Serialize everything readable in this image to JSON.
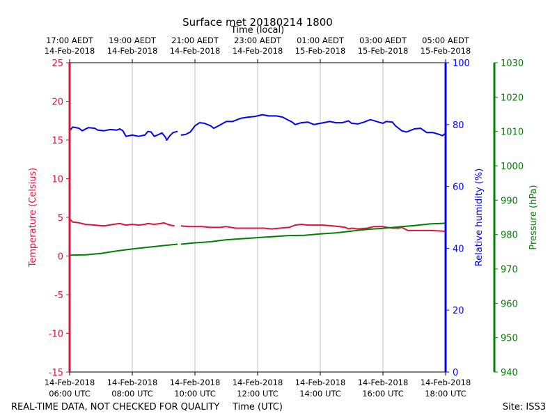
{
  "chart_data": {
    "type": "line",
    "title": "Surface met 20180214 1800",
    "top_axis_label": "Time (local)",
    "xlabel": "Time (UTC)",
    "x_unit": "UTC hour on 14-Feb-2018",
    "xlim": [
      6,
      18
    ],
    "top_ticks": [
      {
        "line1": "17:00 AEDT",
        "line2": "14-Feb-2018",
        "x": 6
      },
      {
        "line1": "19:00 AEDT",
        "line2": "14-Feb-2018",
        "x": 8
      },
      {
        "line1": "21:00 AEDT",
        "line2": "14-Feb-2018",
        "x": 10
      },
      {
        "line1": "23:00 AEDT",
        "line2": "14-Feb-2018",
        "x": 12
      },
      {
        "line1": "01:00 AEDT",
        "line2": "15-Feb-2018",
        "x": 14
      },
      {
        "line1": "03:00 AEDT",
        "line2": "15-Feb-2018",
        "x": 16
      },
      {
        "line1": "05:00 AEDT",
        "line2": "15-Feb-2018",
        "x": 18
      }
    ],
    "bottom_ticks": [
      {
        "line1": "14-Feb-2018",
        "line2": "06:00 UTC",
        "x": 6
      },
      {
        "line1": "14-Feb-2018",
        "line2": "08:00 UTC",
        "x": 8
      },
      {
        "line1": "14-Feb-2018",
        "line2": "10:00 UTC",
        "x": 10
      },
      {
        "line1": "14-Feb-2018",
        "line2": "12:00 UTC",
        "x": 12
      },
      {
        "line1": "14-Feb-2018",
        "line2": "14:00 UTC",
        "x": 14
      },
      {
        "line1": "14-Feb-2018",
        "line2": "16:00 UTC",
        "x": 16
      },
      {
        "line1": "14-Feb-2018",
        "line2": "18:00 UTC",
        "x": 18
      }
    ],
    "grid": "vertical lines at major x ticks",
    "axes": {
      "temperature": {
        "label": "Temperature (Celsius)",
        "color": "#dc143c",
        "range": [
          -15,
          25
        ],
        "ticks": [
          -15,
          -10,
          -5,
          0,
          5,
          10,
          15,
          20,
          25
        ],
        "side": "left"
      },
      "humidity": {
        "label": "Relative humidity (%)",
        "color": "#0000ff",
        "range": [
          0,
          100
        ],
        "ticks": [
          0,
          20,
          40,
          60,
          80,
          100
        ],
        "side": "right"
      },
      "pressure": {
        "label": "Pressure (hPa)",
        "color": "#008000",
        "range": [
          940,
          1030
        ],
        "ticks": [
          940,
          950,
          960,
          970,
          980,
          990,
          1000,
          1010,
          1020,
          1030
        ],
        "side": "right-outer"
      }
    },
    "series": [
      {
        "axis": "humidity",
        "color": "#0000ff",
        "segments": [
          [
            [
              6.0,
              78.0
            ],
            [
              6.1,
              79.2
            ],
            [
              6.3,
              78.8
            ],
            [
              6.4,
              78.0
            ],
            [
              6.6,
              79.0
            ],
            [
              6.8,
              78.8
            ],
            [
              6.9,
              78.2
            ],
            [
              7.1,
              78.0
            ],
            [
              7.3,
              78.4
            ],
            [
              7.5,
              78.2
            ],
            [
              7.6,
              78.6
            ],
            [
              7.7,
              78.0
            ],
            [
              7.8,
              76.2
            ],
            [
              8.0,
              76.6
            ],
            [
              8.2,
              76.2
            ],
            [
              8.4,
              76.6
            ],
            [
              8.5,
              77.8
            ],
            [
              8.6,
              77.6
            ],
            [
              8.7,
              76.2
            ],
            [
              8.8,
              76.6
            ],
            [
              8.95,
              77.3
            ],
            [
              9.05,
              76.0
            ],
            [
              9.1,
              75.0
            ],
            [
              9.2,
              76.4
            ],
            [
              9.3,
              77.4
            ],
            [
              9.45,
              77.8
            ]
          ],
          [
            [
              9.55,
              76.6
            ],
            [
              9.7,
              76.8
            ],
            [
              9.85,
              77.6
            ],
            [
              10.0,
              79.6
            ],
            [
              10.15,
              80.6
            ],
            [
              10.3,
              80.4
            ],
            [
              10.5,
              79.6
            ],
            [
              10.6,
              78.8
            ],
            [
              10.75,
              79.6
            ],
            [
              11.0,
              81.0
            ],
            [
              11.2,
              81.0
            ],
            [
              11.45,
              82.0
            ],
            [
              11.7,
              82.4
            ],
            [
              11.9,
              82.6
            ],
            [
              12.15,
              83.2
            ],
            [
              12.35,
              82.8
            ],
            [
              12.6,
              82.8
            ],
            [
              12.8,
              82.4
            ],
            [
              12.95,
              81.6
            ],
            [
              13.1,
              80.8
            ],
            [
              13.2,
              80.0
            ],
            [
              13.4,
              80.6
            ],
            [
              13.6,
              80.8
            ],
            [
              13.8,
              80.0
            ],
            [
              14.0,
              80.4
            ],
            [
              14.3,
              81.0
            ],
            [
              14.5,
              80.6
            ],
            [
              14.7,
              80.6
            ],
            [
              14.9,
              81.2
            ],
            [
              15.0,
              80.4
            ],
            [
              15.2,
              80.2
            ],
            [
              15.4,
              80.8
            ],
            [
              15.6,
              81.6
            ],
            [
              15.8,
              81.0
            ],
            [
              16.0,
              80.4
            ],
            [
              16.1,
              81.0
            ],
            [
              16.3,
              80.8
            ],
            [
              16.4,
              79.6
            ],
            [
              16.6,
              78.0
            ],
            [
              16.75,
              77.6
            ],
            [
              17.0,
              78.6
            ],
            [
              17.2,
              78.8
            ],
            [
              17.4,
              77.4
            ],
            [
              17.6,
              77.4
            ],
            [
              17.8,
              76.8
            ],
            [
              17.9,
              76.4
            ],
            [
              18.0,
              77.2
            ]
          ]
        ]
      },
      {
        "axis": "temperature",
        "color": "#dc143c",
        "segments": [
          [
            [
              6.0,
              4.8
            ],
            [
              6.1,
              4.4
            ],
            [
              6.3,
              4.3
            ],
            [
              6.5,
              4.1
            ],
            [
              6.8,
              4.0
            ],
            [
              7.1,
              3.9
            ],
            [
              7.4,
              4.1
            ],
            [
              7.6,
              4.2
            ],
            [
              7.8,
              4.0
            ],
            [
              8.0,
              4.1
            ],
            [
              8.2,
              4.0
            ],
            [
              8.4,
              4.1
            ],
            [
              8.5,
              4.2
            ],
            [
              8.7,
              4.1
            ],
            [
              8.9,
              4.2
            ],
            [
              9.0,
              4.3
            ],
            [
              9.2,
              4.0
            ],
            [
              9.35,
              3.9
            ]
          ],
          [
            [
              9.55,
              3.9
            ],
            [
              9.8,
              3.8
            ],
            [
              10.2,
              3.8
            ],
            [
              10.5,
              3.7
            ],
            [
              10.8,
              3.7
            ],
            [
              11.0,
              3.8
            ],
            [
              11.3,
              3.6
            ],
            [
              11.8,
              3.6
            ],
            [
              12.2,
              3.6
            ],
            [
              12.45,
              3.5
            ],
            [
              12.7,
              3.6
            ],
            [
              13.0,
              3.7
            ],
            [
              13.2,
              4.0
            ],
            [
              13.4,
              4.1
            ],
            [
              13.6,
              4.0
            ],
            [
              13.9,
              4.0
            ],
            [
              14.1,
              4.0
            ],
            [
              14.4,
              3.9
            ],
            [
              14.6,
              3.8
            ],
            [
              14.8,
              3.7
            ],
            [
              14.9,
              3.5
            ],
            [
              15.0,
              3.6
            ],
            [
              15.2,
              3.5
            ],
            [
              15.5,
              3.6
            ],
            [
              15.7,
              3.8
            ],
            [
              16.0,
              3.8
            ],
            [
              16.3,
              3.6
            ],
            [
              16.5,
              3.6
            ],
            [
              16.6,
              3.7
            ],
            [
              16.8,
              3.3
            ],
            [
              17.2,
              3.3
            ],
            [
              17.5,
              3.3
            ],
            [
              18.0,
              3.2
            ]
          ]
        ]
      },
      {
        "axis": "pressure",
        "color": "#008000",
        "segments": [
          [
            [
              6.0,
              974.0
            ],
            [
              6.5,
              974.1
            ],
            [
              7.0,
              974.5
            ],
            [
              7.5,
              975.2
            ],
            [
              8.0,
              975.8
            ],
            [
              8.5,
              976.3
            ],
            [
              9.0,
              976.8
            ],
            [
              9.45,
              977.2
            ]
          ],
          [
            [
              9.55,
              977.2
            ],
            [
              10.0,
              977.6
            ],
            [
              10.5,
              977.9
            ],
            [
              11.0,
              978.5
            ],
            [
              11.5,
              978.8
            ],
            [
              12.0,
              979.1
            ],
            [
              12.5,
              979.4
            ],
            [
              13.0,
              979.7
            ],
            [
              13.5,
              979.8
            ],
            [
              14.0,
              980.2
            ],
            [
              14.5,
              980.5
            ],
            [
              15.0,
              981.0
            ],
            [
              15.5,
              981.5
            ],
            [
              16.0,
              981.8
            ],
            [
              16.5,
              982.2
            ],
            [
              17.0,
              982.6
            ],
            [
              17.5,
              983.1
            ],
            [
              18.0,
              983.3
            ]
          ]
        ]
      }
    ]
  },
  "footer": {
    "left": "REAL-TIME DATA, NOT CHECKED FOR QUALITY",
    "right": "Site: ISS3"
  }
}
